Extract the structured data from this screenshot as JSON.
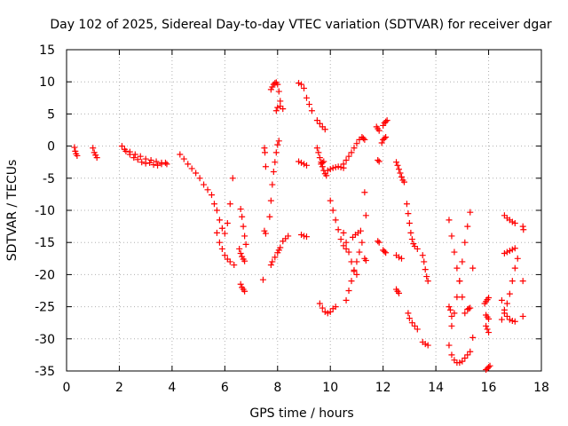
{
  "chart_data": {
    "type": "scatter",
    "title": "Day 102 of 2025, Sidereal Day-to-day VTEC variation (SDTVAR) for receiver dgar",
    "xlabel": "GPS time / hours",
    "ylabel": "SDTVAR / TECUs",
    "xlim": [
      0,
      18
    ],
    "ylim": [
      -35,
      15
    ],
    "x_ticks": [
      "0",
      "2",
      "4",
      "6",
      "8",
      "10",
      "12",
      "14",
      "16",
      "18"
    ],
    "y_ticks": [
      "15",
      "10",
      "5",
      "0",
      "-5",
      "-10",
      "-15",
      "-20",
      "-25",
      "-30",
      "-35"
    ],
    "grid": true,
    "marker": "+",
    "color": "#ff0000",
    "series": [
      {
        "name": "s01",
        "x": [
          0.3,
          0.33,
          0.36,
          0.4
        ],
        "y": [
          -0.2,
          -0.8,
          -1.2,
          -1.5
        ]
      },
      {
        "name": "s02",
        "x": [
          1.0,
          1.05,
          1.1,
          1.15
        ],
        "y": [
          -0.3,
          -1.0,
          -1.4,
          -1.8
        ]
      },
      {
        "name": "s03",
        "x": [
          2.1,
          2.25,
          2.4,
          2.55,
          2.7,
          2.85,
          3.0,
          3.15,
          3.3,
          3.45,
          3.6,
          3.75
        ],
        "y": [
          0.0,
          -0.8,
          -1.3,
          -1.8,
          -2.1,
          -2.5,
          -2.7,
          -2.6,
          -2.9,
          -3.0,
          -2.8,
          -2.6
        ]
      },
      {
        "name": "s04",
        "x": [
          2.2,
          2.4,
          2.6,
          2.8,
          3.0,
          3.2,
          3.4,
          3.6,
          3.8
        ],
        "y": [
          -0.5,
          -0.9,
          -1.3,
          -1.6,
          -2.0,
          -2.2,
          -2.4,
          -2.6,
          -2.8
        ]
      },
      {
        "name": "s05",
        "x": [
          4.3,
          4.45,
          4.6,
          4.75,
          4.9,
          5.05,
          5.2,
          5.35,
          5.5
        ],
        "y": [
          -1.3,
          -2.0,
          -2.8,
          -3.5,
          -4.2,
          -5.0,
          -6.0,
          -6.8,
          -7.6
        ]
      },
      {
        "name": "s06",
        "x": [
          5.6,
          5.7,
          5.8,
          5.9,
          6.0,
          6.1,
          6.2,
          6.3
        ],
        "y": [
          -9.0,
          -10.0,
          -11.5,
          -12.8,
          -13.6,
          -12.0,
          -9.0,
          -5.0
        ]
      },
      {
        "name": "s07",
        "x": [
          5.7,
          5.8,
          5.9,
          6.0,
          6.1,
          6.2,
          6.35
        ],
        "y": [
          -13.5,
          -15.0,
          -16.0,
          -17.0,
          -17.6,
          -18.0,
          -18.5
        ]
      },
      {
        "name": "s08",
        "x": [
          6.6,
          6.65,
          6.7,
          6.75,
          6.8
        ],
        "y": [
          -9.8,
          -11.0,
          -12.5,
          -14.0,
          -15.3
        ]
      },
      {
        "name": "s09",
        "x": [
          6.55,
          6.6,
          6.65,
          6.7,
          6.75
        ],
        "y": [
          -16.0,
          -16.7,
          -17.2,
          -17.6,
          -17.9
        ]
      },
      {
        "name": "s10",
        "x": [
          6.6,
          6.65,
          6.7,
          6.75
        ],
        "y": [
          -21.5,
          -22.0,
          -22.3,
          -22.6
        ]
      },
      {
        "name": "s11",
        "x": [
          7.5,
          7.52,
          7.55
        ],
        "y": [
          -0.3,
          -1.0,
          -3.2
        ]
      },
      {
        "name": "s12",
        "x": [
          7.5,
          7.55
        ],
        "y": [
          -13.2,
          -13.6
        ]
      },
      {
        "name": "s13",
        "x": [
          7.45
        ],
        "y": [
          -20.8
        ]
      },
      {
        "name": "s14",
        "x": [
          7.7,
          7.75,
          7.8,
          7.85,
          7.9,
          7.95,
          8.0,
          8.05
        ],
        "y": [
          -11.0,
          -8.5,
          -6.0,
          -4.0,
          -2.5,
          -1.0,
          0.2,
          0.8
        ]
      },
      {
        "name": "s15",
        "x": [
          7.75,
          7.8,
          7.9,
          8.0,
          8.05,
          8.1
        ],
        "y": [
          -18.5,
          -18.0,
          -17.3,
          -16.6,
          -16.2,
          -15.8
        ]
      },
      {
        "name": "s16",
        "x": [
          8.2,
          8.3,
          8.4
        ],
        "y": [
          -14.8,
          -14.4,
          -14.0
        ]
      },
      {
        "name": "s17",
        "x": [
          7.75,
          7.8,
          7.85,
          7.9,
          7.95,
          8.0,
          8.05,
          8.1
        ],
        "y": [
          8.8,
          9.2,
          9.6,
          9.8,
          9.9,
          9.6,
          8.5,
          7.0
        ]
      },
      {
        "name": "s18",
        "x": [
          7.95,
          8.0,
          8.1,
          8.2
        ],
        "y": [
          5.5,
          6.0,
          6.2,
          5.8
        ]
      },
      {
        "name": "s19",
        "x": [
          8.8,
          8.9,
          9.0,
          9.1,
          9.2,
          9.3
        ],
        "y": [
          9.8,
          9.6,
          9.0,
          7.5,
          6.5,
          5.5
        ]
      },
      {
        "name": "s20",
        "x": [
          8.8,
          8.9,
          9.0,
          9.1
        ],
        "y": [
          -2.4,
          -2.6,
          -2.8,
          -3.0
        ]
      },
      {
        "name": "s21",
        "x": [
          8.9,
          9.0,
          9.1
        ],
        "y": [
          -13.8,
          -14.0,
          -14.1
        ]
      },
      {
        "name": "s22",
        "x": [
          9.5,
          9.6,
          9.7,
          9.8
        ],
        "y": [
          4.0,
          3.5,
          3.0,
          2.6
        ]
      },
      {
        "name": "s23",
        "x": [
          9.5,
          9.55,
          9.6,
          9.65,
          9.7,
          9.75,
          9.8,
          9.85
        ],
        "y": [
          -0.3,
          -1.0,
          -1.8,
          -2.5,
          -3.2,
          -3.8,
          -4.3,
          -4.6
        ]
      },
      {
        "name": "s24",
        "x": [
          9.65,
          9.7,
          9.75
        ],
        "y": [
          -2.8,
          -2.6,
          -2.4
        ]
      },
      {
        "name": "s25",
        "x": [
          9.9,
          10.0,
          10.1,
          10.2,
          10.3,
          10.4,
          10.5
        ],
        "y": [
          -3.8,
          -3.6,
          -3.4,
          -3.3,
          -3.2,
          -3.3,
          -3.4
        ]
      },
      {
        "name": "s26",
        "x": [
          10.5,
          10.6,
          10.7,
          10.8,
          10.9,
          11.0,
          11.1
        ],
        "y": [
          -2.8,
          -2.2,
          -1.6,
          -1.0,
          -0.3,
          0.4,
          1.0
        ]
      },
      {
        "name": "s27",
        "x": [
          10.0,
          10.1,
          10.2,
          10.3,
          10.4,
          10.5,
          10.6
        ],
        "y": [
          -8.5,
          -10.0,
          -11.5,
          -13.0,
          -14.5,
          -15.5,
          -16.0
        ]
      },
      {
        "name": "s28",
        "x": [
          9.6,
          9.7,
          9.8,
          9.9,
          10.0,
          10.1,
          10.2
        ],
        "y": [
          -24.5,
          -25.2,
          -25.8,
          -26.0,
          -25.8,
          -25.3,
          -25.0
        ]
      },
      {
        "name": "s29",
        "x": [
          10.6,
          10.7,
          10.8,
          10.9,
          11.0,
          11.1,
          11.2
        ],
        "y": [
          -24.0,
          -22.5,
          -21.0,
          -19.5,
          -18.0,
          -16.5,
          -15.0
        ]
      },
      {
        "name": "s30",
        "x": [
          10.5,
          10.6,
          10.7,
          10.8,
          10.9,
          11.0
        ],
        "y": [
          -13.5,
          -15.0,
          -16.5,
          -18.0,
          -19.3,
          -20.0
        ]
      },
      {
        "name": "s31",
        "x": [
          10.85,
          10.95,
          11.05,
          11.15
        ],
        "y": [
          -14.2,
          -13.8,
          -13.5,
          -13.2
        ]
      },
      {
        "name": "s32",
        "x": [
          11.3,
          11.35
        ],
        "y": [
          -7.2,
          -10.8
        ]
      },
      {
        "name": "s33",
        "x": [
          11.2,
          11.25,
          11.3
        ],
        "y": [
          1.4,
          1.2,
          1.0
        ]
      },
      {
        "name": "s34",
        "x": [
          11.3,
          11.35
        ],
        "y": [
          -17.5,
          -17.8
        ]
      },
      {
        "name": "s35",
        "x": [
          11.75,
          11.8,
          11.85
        ],
        "y": [
          3.0,
          2.7,
          2.4
        ]
      },
      {
        "name": "s36",
        "x": [
          12.0,
          12.05,
          12.1,
          12.15
        ],
        "y": [
          3.2,
          3.6,
          3.8,
          4.0
        ]
      },
      {
        "name": "s37",
        "x": [
          11.95,
          12.0,
          12.05,
          12.1
        ],
        "y": [
          0.5,
          1.0,
          1.2,
          1.4
        ]
      },
      {
        "name": "s38",
        "x": [
          11.8,
          11.85
        ],
        "y": [
          -2.2,
          -2.4
        ]
      },
      {
        "name": "s39",
        "x": [
          11.8,
          11.85
        ],
        "y": [
          -14.8,
          -15.0
        ]
      },
      {
        "name": "s40",
        "x": [
          12.0,
          12.05,
          12.1
        ],
        "y": [
          -16.2,
          -16.4,
          -16.6
        ]
      },
      {
        "name": "s41",
        "x": [
          12.5,
          12.55,
          12.6,
          12.65,
          12.7,
          12.75,
          12.8
        ],
        "y": [
          -2.5,
          -3.0,
          -3.6,
          -4.2,
          -4.8,
          -5.3,
          -5.6
        ]
      },
      {
        "name": "s42",
        "x": [
          12.5,
          12.6,
          12.7
        ],
        "y": [
          -17.0,
          -17.3,
          -17.5
        ]
      },
      {
        "name": "s43",
        "x": [
          12.5,
          12.55,
          12.6
        ],
        "y": [
          -22.3,
          -22.6,
          -22.9
        ]
      },
      {
        "name": "s44",
        "x": [
          12.9,
          12.95,
          13.0,
          13.05,
          13.1,
          13.15,
          13.2,
          13.3
        ],
        "y": [
          -9.0,
          -10.5,
          -12.0,
          -13.5,
          -14.5,
          -15.2,
          -15.6,
          -16.0
        ]
      },
      {
        "name": "s45",
        "x": [
          12.95,
          13.0,
          13.1,
          13.2,
          13.3
        ],
        "y": [
          -26.0,
          -26.8,
          -27.5,
          -28.0,
          -28.5
        ]
      },
      {
        "name": "s46",
        "x": [
          13.5,
          13.55,
          13.6,
          13.65,
          13.7
        ],
        "y": [
          -17.0,
          -18.0,
          -19.2,
          -20.3,
          -21.0
        ]
      },
      {
        "name": "s47",
        "x": [
          13.5,
          13.6,
          13.7
        ],
        "y": [
          -30.5,
          -30.8,
          -31.0
        ]
      },
      {
        "name": "s48",
        "x": [
          14.5,
          14.6,
          14.7,
          14.8,
          14.9,
          15.0,
          15.1,
          15.2,
          15.3
        ],
        "y": [
          -31.0,
          -32.5,
          -33.3,
          -33.7,
          -33.7,
          -33.5,
          -33.0,
          -32.5,
          -32.0
        ]
      },
      {
        "name": "s49",
        "x": [
          14.5,
          14.6,
          14.7,
          14.8,
          14.9,
          15.0,
          15.1
        ],
        "y": [
          -11.5,
          -14.0,
          -16.5,
          -19.0,
          -21.0,
          -23.5,
          -26.0
        ]
      },
      {
        "name": "s50",
        "x": [
          14.6,
          14.7,
          14.8,
          14.9,
          15.0,
          15.1,
          15.2,
          15.3
        ],
        "y": [
          -28.0,
          -26.0,
          -23.5,
          -21.0,
          -18.0,
          -15.0,
          -12.5,
          -10.3
        ]
      },
      {
        "name": "s51",
        "x": [
          14.5,
          14.55,
          14.6
        ],
        "y": [
          -25.0,
          -25.5,
          -26.5
        ]
      },
      {
        "name": "s52",
        "x": [
          15.2,
          15.25,
          15.3
        ],
        "y": [
          -25.4,
          -25.3,
          -25.2
        ]
      },
      {
        "name": "s53",
        "x": [
          15.4
        ],
        "y": [
          -19.0
        ]
      },
      {
        "name": "s54",
        "x": [
          15.4
        ],
        "y": [
          -29.8
        ]
      },
      {
        "name": "s55",
        "x": [
          15.85,
          15.9,
          15.95,
          16.0
        ],
        "y": [
          -24.5,
          -24.2,
          -23.9,
          -23.6
        ]
      },
      {
        "name": "s56",
        "x": [
          15.9,
          15.95,
          16.0
        ],
        "y": [
          -26.3,
          -26.6,
          -26.9
        ]
      },
      {
        "name": "s57",
        "x": [
          15.9,
          15.95,
          16.0
        ],
        "y": [
          -28.0,
          -28.5,
          -29.0
        ]
      },
      {
        "name": "s58",
        "x": [
          15.9,
          15.95,
          16.0,
          16.05
        ],
        "y": [
          -34.8,
          -34.6,
          -34.4,
          -34.2
        ]
      },
      {
        "name": "s59",
        "x": [
          16.5,
          16.6,
          16.7,
          16.8,
          16.9,
          17.0,
          17.1
        ],
        "y": [
          -27.0,
          -26.0,
          -24.5,
          -23.0,
          -21.0,
          -19.0,
          -17.5
        ]
      },
      {
        "name": "s60",
        "x": [
          16.5,
          16.6,
          16.7,
          16.8,
          16.9,
          17.0
        ],
        "y": [
          -24.0,
          -25.5,
          -26.5,
          -27.0,
          -27.2,
          -27.3
        ]
      },
      {
        "name": "s61",
        "x": [
          16.6,
          16.7,
          16.8,
          16.9,
          17.0
        ],
        "y": [
          -16.7,
          -16.5,
          -16.3,
          -16.1,
          -15.9
        ]
      },
      {
        "name": "s62",
        "x": [
          16.6,
          16.7,
          16.8,
          16.9,
          17.0
        ],
        "y": [
          -10.8,
          -11.2,
          -11.5,
          -11.8,
          -12.0
        ]
      },
      {
        "name": "s63",
        "x": [
          17.3,
          17.32
        ],
        "y": [
          -12.5,
          -13.0
        ]
      },
      {
        "name": "s64",
        "x": [
          17.3
        ],
        "y": [
          -21.0
        ]
      },
      {
        "name": "s65",
        "x": [
          17.3
        ],
        "y": [
          -26.5
        ]
      }
    ]
  }
}
